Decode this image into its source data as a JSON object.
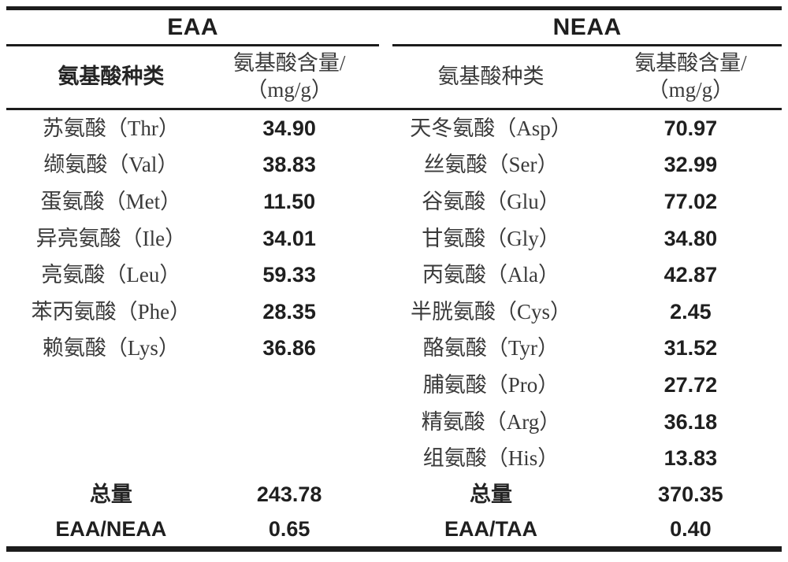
{
  "table": {
    "groups": {
      "eaa_title": "EAA",
      "neaa_title": "NEAA"
    },
    "col_headers": {
      "eaa_name": "氨基酸种类",
      "eaa_value_line1": "氨基酸含量/",
      "eaa_value_line2": "（mg/g）",
      "neaa_name": "氨基酸种类",
      "neaa_value_line1": "氨基酸含量/",
      "neaa_value_line2": "（mg/g）"
    },
    "eaa_rows": [
      {
        "name": "苏氨酸（Thr）",
        "value": "34.90"
      },
      {
        "name": "缬氨酸（Val）",
        "value": "38.83"
      },
      {
        "name": "蛋氨酸（Met）",
        "value": "11.50"
      },
      {
        "name": "异亮氨酸（Ile）",
        "value": "34.01"
      },
      {
        "name": "亮氨酸（Leu）",
        "value": "59.33"
      },
      {
        "name": "苯丙氨酸（Phe）",
        "value": "28.35"
      },
      {
        "name": "赖氨酸（Lys）",
        "value": "36.86"
      }
    ],
    "neaa_rows": [
      {
        "name": "天冬氨酸（Asp）",
        "value": "70.97"
      },
      {
        "name": "丝氨酸（Ser）",
        "value": "32.99"
      },
      {
        "name": "谷氨酸（Glu）",
        "value": "77.02"
      },
      {
        "name": "甘氨酸（Gly）",
        "value": "34.80"
      },
      {
        "name": "丙氨酸（Ala）",
        "value": "42.87"
      },
      {
        "name": "半胱氨酸（Cys）",
        "value": "2.45"
      },
      {
        "name": "酪氨酸（Tyr）",
        "value": "31.52"
      },
      {
        "name": "脯氨酸（Pro）",
        "value": "27.72"
      },
      {
        "name": "精氨酸（Arg）",
        "value": "36.18"
      },
      {
        "name": "组氨酸（His）",
        "value": "13.83"
      }
    ],
    "totals": {
      "eaa_label": "总量",
      "eaa_value": "243.78",
      "neaa_label": "总量",
      "neaa_value": "370.35"
    },
    "ratios": {
      "eaa_label": "EAA/NEAA",
      "eaa_value": "0.65",
      "neaa_label": "EAA/TAA",
      "neaa_value": "0.40"
    }
  },
  "chart_data": {
    "type": "table",
    "title": "",
    "columns": [
      "氨基酸种类",
      "氨基酸含量/（mg/g）",
      "氨基酸种类",
      "氨基酸含量/（mg/g）"
    ],
    "eaa": {
      "categories": [
        "苏氨酸（Thr）",
        "缬氨酸（Val）",
        "蛋氨酸（Met）",
        "异亮氨酸（Ile）",
        "亮氨酸（Leu）",
        "苯丙氨酸（Phe）",
        "赖氨酸（Lys）"
      ],
      "values": [
        34.9,
        38.83,
        11.5,
        34.01,
        59.33,
        28.35,
        36.86
      ],
      "total": 243.78,
      "ratio_label": "EAA/NEAA",
      "ratio_value": 0.65
    },
    "neaa": {
      "categories": [
        "天冬氨酸（Asp）",
        "丝氨酸（Ser）",
        "谷氨酸（Glu）",
        "甘氨酸（Gly）",
        "丙氨酸（Ala）",
        "半胱氨酸（Cys）",
        "酪氨酸（Tyr）",
        "脯氨酸（Pro）",
        "精氨酸（Arg）",
        "组氨酸（His）"
      ],
      "values": [
        70.97,
        32.99,
        77.02,
        34.8,
        42.87,
        2.45,
        31.52,
        27.72,
        36.18,
        13.83
      ],
      "total": 370.35,
      "ratio_label": "EAA/TAA",
      "ratio_value": 0.4
    }
  }
}
